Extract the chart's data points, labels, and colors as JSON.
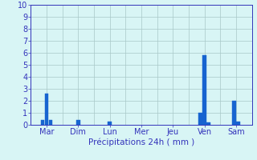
{
  "days": [
    "Mar",
    "Dim",
    "Lun",
    "Mer",
    "Jeu",
    "Ven",
    "Sam"
  ],
  "bars": [
    [
      0.4,
      2.6,
      0.4
    ],
    [
      0.4
    ],
    [
      0.3
    ],
    [],
    [],
    [
      1.0,
      5.8,
      0.2
    ],
    [
      2.0,
      0.3
    ]
  ],
  "bar_color": "#1764d0",
  "background_color": "#d8f5f5",
  "grid_color": "#a8c8c8",
  "axis_color": "#3333bb",
  "xlabel": "Précipitations 24h ( mm )",
  "ylim": [
    0,
    10
  ],
  "yticks": [
    0,
    1,
    2,
    3,
    4,
    5,
    6,
    7,
    8,
    9,
    10
  ],
  "xlabel_fontsize": 7.5,
  "tick_fontsize": 7
}
